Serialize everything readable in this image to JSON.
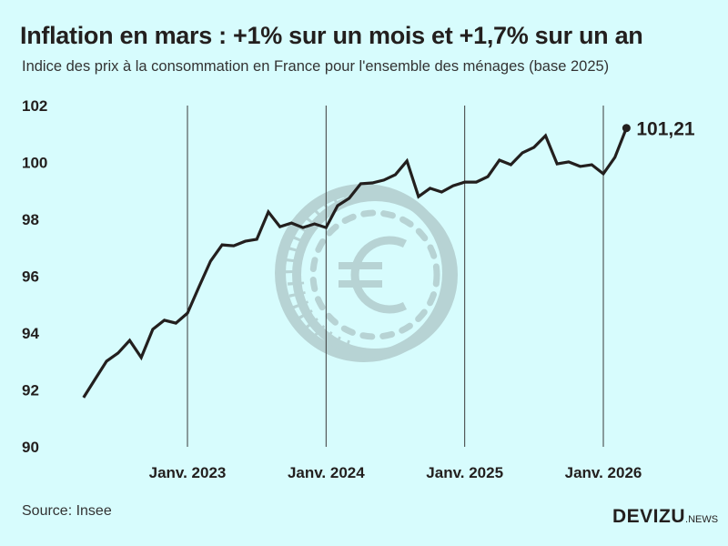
{
  "title": "Inflation en mars : +1% sur un mois et +1,7% sur un an",
  "subtitle": "Indice des prix à la consommation en France pour l'ensemble des ménages (base 2025)",
  "source": "Source: Insee",
  "logo": {
    "main": "DEVIZU",
    "suffix": ".NEWS"
  },
  "colors": {
    "background": "#d7fcfd",
    "line": "#231f1e",
    "watermark": "#b7d3d4"
  },
  "watermark_icon": "euro-coin-icon",
  "chart_data": {
    "type": "line",
    "title": "",
    "xlabel": "",
    "ylabel": "",
    "ylim": [
      90,
      102
    ],
    "yticks": [
      "90",
      "92",
      "94",
      "96",
      "98",
      "100",
      "102"
    ],
    "xticks": [
      {
        "label": "Janv. 2023",
        "date": "2023-01"
      },
      {
        "label": "Janv. 2024",
        "date": "2024-01"
      },
      {
        "label": "Janv. 2025",
        "date": "2025-01"
      },
      {
        "label": "Janv. 2026",
        "date": "2026-01"
      }
    ],
    "grid": "vertical lines at January of each year",
    "last_label": "101,21",
    "series": [
      {
        "x": [
          "2022-04",
          "2022-05",
          "2022-06",
          "2022-07",
          "2022-08",
          "2022-09",
          "2022-10",
          "2022-11",
          "2022-12",
          "2023-01",
          "2023-02",
          "2023-03",
          "2023-04",
          "2023-05",
          "2023-06",
          "2023-07",
          "2023-08",
          "2023-09",
          "2023-10",
          "2023-11",
          "2023-12",
          "2024-01",
          "2024-02",
          "2024-03",
          "2024-04",
          "2024-05",
          "2024-06",
          "2024-07",
          "2024-08",
          "2024-09",
          "2024-10",
          "2024-11",
          "2024-12",
          "2025-01",
          "2025-02",
          "2025-03",
          "2025-04",
          "2025-05",
          "2025-06",
          "2025-07",
          "2025-08",
          "2025-09",
          "2025-10",
          "2025-11",
          "2025-12",
          "2026-01",
          "2026-02",
          "2026-03"
        ],
        "values": [
          91.73,
          92.37,
          93.01,
          93.3,
          93.74,
          93.14,
          94.13,
          94.45,
          94.35,
          94.7,
          95.63,
          96.53,
          97.1,
          97.07,
          97.23,
          97.3,
          98.26,
          97.74,
          97.87,
          97.71,
          97.84,
          97.71,
          98.48,
          98.74,
          99.25,
          99.28,
          99.38,
          99.57,
          100.05,
          98.8,
          99.09,
          98.96,
          99.18,
          99.31,
          99.31,
          99.5,
          100.08,
          99.92,
          100.34,
          100.53,
          100.94,
          99.95,
          100.02,
          99.86,
          99.92,
          99.6,
          100.18,
          101.21
        ]
      }
    ]
  }
}
